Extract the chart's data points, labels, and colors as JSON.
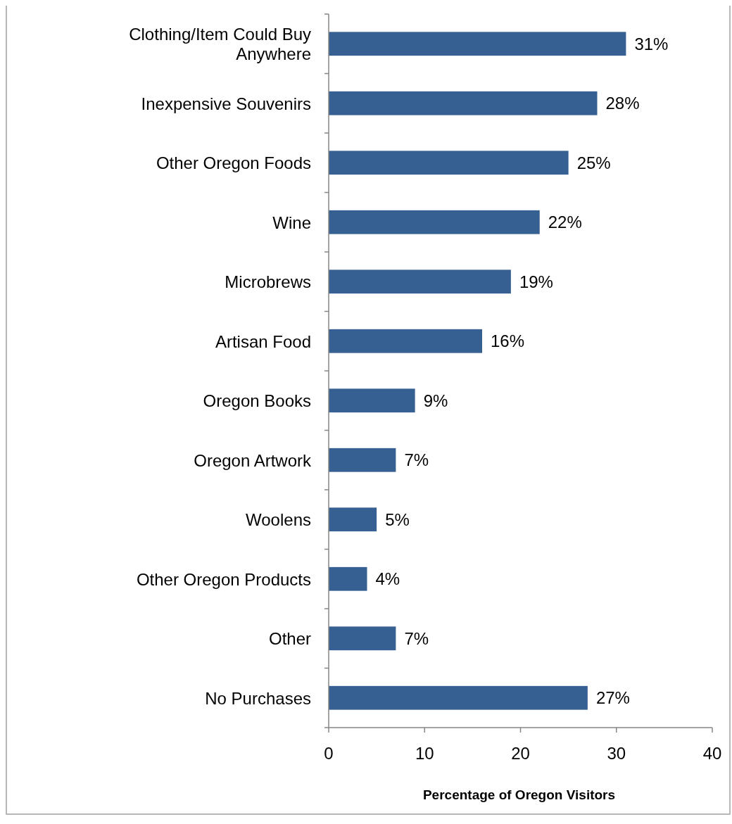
{
  "chart_data": {
    "type": "bar",
    "orientation": "horizontal",
    "categories": [
      "Clothing/Item Could Buy Anywhere",
      "Inexpensive Souvenirs",
      "Other Oregon Foods",
      "Wine",
      "Microbrews",
      "Artisan Food",
      "Oregon Books",
      "Oregon Artwork",
      "Woolens",
      "Other Oregon Products",
      "Other",
      "No Purchases"
    ],
    "values": [
      31,
      28,
      25,
      22,
      19,
      16,
      9,
      7,
      5,
      4,
      7,
      27
    ],
    "value_labels": [
      "31%",
      "28%",
      "25%",
      "22%",
      "19%",
      "16%",
      "9%",
      "7%",
      "5%",
      "4%",
      "7%",
      "27%"
    ],
    "color": "#366092",
    "xlim": [
      0,
      40
    ],
    "xticks": [
      0,
      10,
      20,
      30,
      40
    ],
    "xlabel": "Percentage of Oregon Visitors",
    "grid": false
  }
}
